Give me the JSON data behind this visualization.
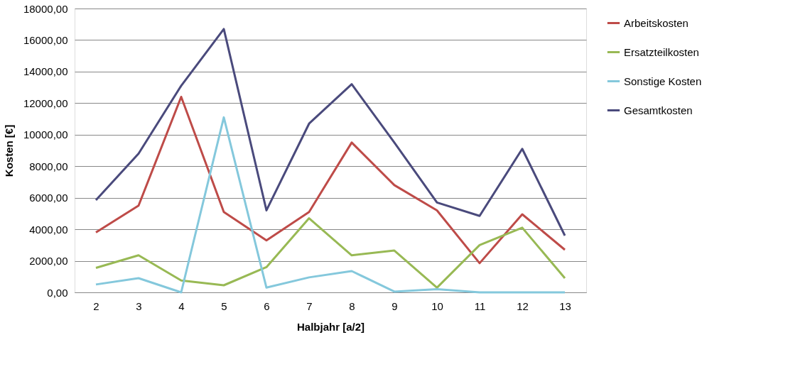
{
  "chart_data": {
    "type": "line",
    "xlabel": "Halbjahr [a/2]",
    "ylabel": "Kosten [€]",
    "categories": [
      "2",
      "3",
      "4",
      "5",
      "6",
      "7",
      "8",
      "9",
      "10",
      "11",
      "12",
      "13"
    ],
    "series": [
      {
        "name": "Arbeitskosten",
        "color": "#be4b48",
        "values": [
          3800,
          5500,
          12400,
          5100,
          3300,
          5100,
          9500,
          6800,
          5200,
          1850,
          4950,
          2700
        ]
      },
      {
        "name": "Ersatzteilkosten",
        "color": "#98b954",
        "values": [
          1550,
          2350,
          750,
          450,
          1600,
          4700,
          2350,
          2650,
          300,
          3000,
          4100,
          900
        ]
      },
      {
        "name": "Sonstige Kosten",
        "color": "#84c8dc",
        "values": [
          500,
          900,
          0,
          11100,
          300,
          950,
          1350,
          50,
          200,
          0,
          0,
          0
        ]
      },
      {
        "name": "Gesamtkosten",
        "color": "#4a4a7c",
        "values": [
          5850,
          8800,
          13100,
          16700,
          5200,
          10700,
          13200,
          9500,
          5700,
          4850,
          9100,
          3600
        ]
      }
    ],
    "ylim": [
      0,
      18000
    ],
    "yticks": [
      {
        "value": 0,
        "label": "0,00"
      },
      {
        "value": 2000,
        "label": "2000,00"
      },
      {
        "value": 4000,
        "label": "4000,00"
      },
      {
        "value": 6000,
        "label": "6000,00"
      },
      {
        "value": 8000,
        "label": "8000,00"
      },
      {
        "value": 10000,
        "label": "10000,00"
      },
      {
        "value": 12000,
        "label": "12000,00"
      },
      {
        "value": 14000,
        "label": "14000,00"
      },
      {
        "value": 16000,
        "label": "16000,00"
      },
      {
        "value": 18000,
        "label": "18000,00"
      }
    ],
    "grid": "y",
    "legend": "right",
    "marker": "none",
    "line_style": "solid"
  }
}
